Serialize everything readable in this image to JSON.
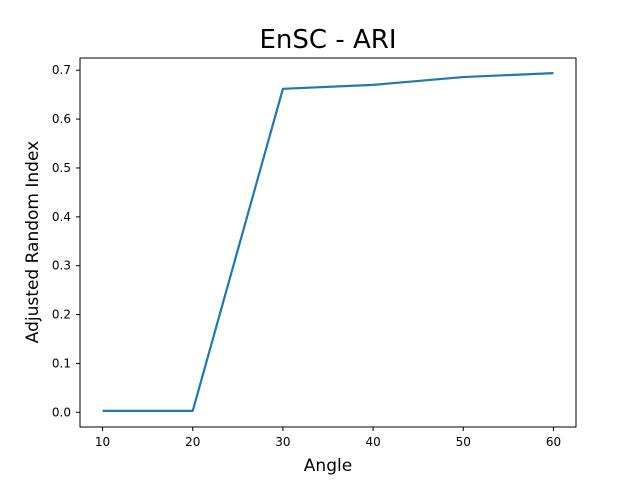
{
  "chart_data": {
    "type": "line",
    "title": "EnSC - ARI",
    "xlabel": "Angle",
    "ylabel": "Adjusted Random Index",
    "xlim": [
      7.5,
      62.5
    ],
    "ylim": [
      -0.03,
      0.725
    ],
    "xticks": [
      10,
      20,
      30,
      40,
      50,
      60
    ],
    "yticks": [
      0.0,
      0.1,
      0.2,
      0.3,
      0.4,
      0.5,
      0.6,
      0.7
    ],
    "xtick_labels": [
      "10",
      "20",
      "30",
      "40",
      "50",
      "60"
    ],
    "ytick_labels": [
      "0.0",
      "0.1",
      "0.2",
      "0.3",
      "0.4",
      "0.5",
      "0.6",
      "0.7"
    ],
    "grid": false,
    "series": [
      {
        "color": "#1f77b4",
        "x": [
          10,
          20,
          30,
          40,
          50,
          60
        ],
        "y": [
          0.003,
          0.003,
          0.662,
          0.67,
          0.686,
          0.694
        ]
      }
    ]
  }
}
